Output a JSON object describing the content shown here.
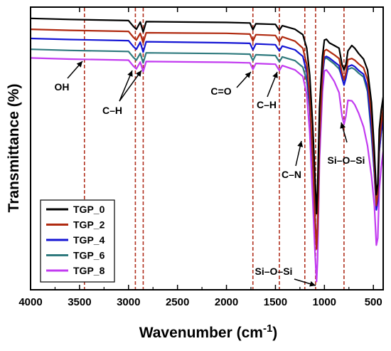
{
  "chart_data": {
    "type": "line",
    "xlabel": "Wavenumber (cm",
    "xlabel_sup": "-1",
    "xlabel_close": ")",
    "ylabel": "Transmittance (%)",
    "xlim": [
      4000,
      400
    ],
    "x_reversed": true,
    "xticks": [
      4000,
      3500,
      3000,
      2500,
      2000,
      1500,
      1000,
      500
    ],
    "y_units": "arbitrary (no y tick labels)",
    "ylim": [
      0,
      100
    ],
    "grid": false,
    "legend_position": "bottom-left",
    "series": [
      {
        "name": "TGP_0",
        "color": "#000000",
        "points": [
          [
            4000,
            99
          ],
          [
            3600,
            98.6
          ],
          [
            3000,
            98.2
          ],
          [
            2950,
            96
          ],
          [
            2920,
            95
          ],
          [
            2880,
            97.6
          ],
          [
            2850,
            94
          ],
          [
            2820,
            97.8
          ],
          [
            2000,
            97.5
          ],
          [
            1760,
            97.3
          ],
          [
            1730,
            94.8
          ],
          [
            1700,
            97
          ],
          [
            1500,
            96.8
          ],
          [
            1460,
            94.6
          ],
          [
            1430,
            96.3
          ],
          [
            1300,
            95
          ],
          [
            1220,
            93
          ],
          [
            1180,
            88
          ],
          [
            1150,
            78
          ],
          [
            1120,
            60
          ],
          [
            1095,
            40
          ],
          [
            1080,
            27
          ],
          [
            1070,
            36
          ],
          [
            1050,
            66
          ],
          [
            1020,
            85
          ],
          [
            1000,
            91
          ],
          [
            980,
            91.3
          ],
          [
            950,
            90
          ],
          [
            900,
            89
          ],
          [
            850,
            88
          ],
          [
            820,
            82
          ],
          [
            800,
            80
          ],
          [
            780,
            82
          ],
          [
            760,
            87
          ],
          [
            720,
            89
          ],
          [
            690,
            88
          ],
          [
            650,
            86
          ],
          [
            600,
            84
          ],
          [
            560,
            80
          ],
          [
            520,
            68
          ],
          [
            490,
            50
          ],
          [
            470,
            34
          ],
          [
            455,
            38
          ],
          [
            440,
            58
          ],
          [
            420,
            65
          ],
          [
            400,
            70
          ]
        ]
      },
      {
        "name": "TGP_2",
        "color": "#b02a10",
        "points": [
          [
            4000,
            95
          ],
          [
            3600,
            94.6
          ],
          [
            3000,
            94.2
          ],
          [
            2950,
            92
          ],
          [
            2920,
            91
          ],
          [
            2880,
            93.5
          ],
          [
            2850,
            90
          ],
          [
            2820,
            93.7
          ],
          [
            2000,
            93.5
          ],
          [
            1760,
            93.2
          ],
          [
            1730,
            90.6
          ],
          [
            1700,
            93
          ],
          [
            1500,
            92.7
          ],
          [
            1460,
            90.4
          ],
          [
            1430,
            92.2
          ],
          [
            1300,
            90.6
          ],
          [
            1220,
            88
          ],
          [
            1180,
            82
          ],
          [
            1150,
            70
          ],
          [
            1120,
            48
          ],
          [
            1095,
            25
          ],
          [
            1080,
            14
          ],
          [
            1070,
            22
          ],
          [
            1050,
            55
          ],
          [
            1020,
            80
          ],
          [
            1000,
            87
          ],
          [
            980,
            87.5
          ],
          [
            950,
            86.8
          ],
          [
            900,
            85.6
          ],
          [
            850,
            84.2
          ],
          [
            820,
            79
          ],
          [
            800,
            76.4
          ],
          [
            780,
            79
          ],
          [
            760,
            83.8
          ],
          [
            720,
            84.2
          ],
          [
            690,
            83.6
          ],
          [
            650,
            82.2
          ],
          [
            600,
            80.8
          ],
          [
            560,
            76.4
          ],
          [
            520,
            63
          ],
          [
            490,
            45
          ],
          [
            470,
            30
          ],
          [
            455,
            34
          ],
          [
            440,
            53
          ],
          [
            420,
            60
          ],
          [
            400,
            66
          ]
        ]
      },
      {
        "name": "TGP_4",
        "color": "#1515d4",
        "points": [
          [
            4000,
            91.6
          ],
          [
            3600,
            91.2
          ],
          [
            3000,
            90.8
          ],
          [
            2950,
            88.6
          ],
          [
            2920,
            87.6
          ],
          [
            2880,
            90.2
          ],
          [
            2850,
            86.6
          ],
          [
            2820,
            90.4
          ],
          [
            2000,
            90
          ],
          [
            1760,
            89.8
          ],
          [
            1730,
            87.4
          ],
          [
            1700,
            89.6
          ],
          [
            1500,
            89.3
          ],
          [
            1460,
            87
          ],
          [
            1430,
            88.8
          ],
          [
            1300,
            87.4
          ],
          [
            1220,
            85
          ],
          [
            1180,
            79
          ],
          [
            1150,
            67
          ],
          [
            1120,
            46
          ],
          [
            1095,
            25
          ],
          [
            1080,
            15
          ],
          [
            1070,
            23
          ],
          [
            1050,
            54
          ],
          [
            1020,
            78
          ],
          [
            1000,
            84.6
          ],
          [
            980,
            85
          ],
          [
            950,
            84.4
          ],
          [
            900,
            83
          ],
          [
            850,
            81.6
          ],
          [
            820,
            77
          ],
          [
            800,
            74.4
          ],
          [
            780,
            77
          ],
          [
            760,
            81.2
          ],
          [
            720,
            81.8
          ],
          [
            690,
            81.2
          ],
          [
            650,
            79.8
          ],
          [
            600,
            78.4
          ],
          [
            560,
            73.4
          ],
          [
            520,
            58
          ],
          [
            490,
            42
          ],
          [
            470,
            28.4
          ],
          [
            455,
            31.6
          ],
          [
            440,
            50
          ],
          [
            420,
            57
          ],
          [
            400,
            63
          ]
        ]
      },
      {
        "name": "TGP_6",
        "color": "#2f7a7e",
        "points": [
          [
            4000,
            87.6
          ],
          [
            3600,
            87.2
          ],
          [
            3000,
            86.8
          ],
          [
            2950,
            84.6
          ],
          [
            2920,
            83.6
          ],
          [
            2880,
            86.1
          ],
          [
            2850,
            82.6
          ],
          [
            2820,
            86.3
          ],
          [
            2000,
            86
          ],
          [
            1760,
            85.8
          ],
          [
            1730,
            83.4
          ],
          [
            1700,
            85.6
          ],
          [
            1500,
            85.3
          ],
          [
            1460,
            83
          ],
          [
            1430,
            84.8
          ],
          [
            1300,
            83.4
          ],
          [
            1220,
            81
          ],
          [
            1180,
            76
          ],
          [
            1150,
            66
          ],
          [
            1120,
            50
          ],
          [
            1095,
            34
          ],
          [
            1080,
            27
          ],
          [
            1070,
            34
          ],
          [
            1050,
            58
          ],
          [
            1020,
            78
          ],
          [
            1000,
            84
          ],
          [
            980,
            84.4
          ],
          [
            950,
            83.6
          ],
          [
            900,
            82.2
          ],
          [
            850,
            80.4
          ],
          [
            820,
            77.4
          ],
          [
            800,
            76
          ],
          [
            780,
            77.4
          ],
          [
            760,
            80.2
          ],
          [
            720,
            80.8
          ],
          [
            690,
            80.2
          ],
          [
            650,
            78.8
          ],
          [
            600,
            77.4
          ],
          [
            560,
            72
          ],
          [
            520,
            56
          ],
          [
            490,
            42
          ],
          [
            470,
            30
          ],
          [
            455,
            33
          ],
          [
            440,
            50
          ],
          [
            420,
            57
          ],
          [
            400,
            62
          ]
        ]
      },
      {
        "name": "TGP_8",
        "color": "#c23bf0",
        "points": [
          [
            4000,
            84.4
          ],
          [
            3600,
            84
          ],
          [
            3000,
            83.6
          ],
          [
            2950,
            81.4
          ],
          [
            2920,
            80.4
          ],
          [
            2880,
            82.9
          ],
          [
            2850,
            79.4
          ],
          [
            2820,
            83.1
          ],
          [
            2000,
            82.8
          ],
          [
            1760,
            82.6
          ],
          [
            1730,
            80.2
          ],
          [
            1700,
            82.4
          ],
          [
            1500,
            82.1
          ],
          [
            1460,
            79.8
          ],
          [
            1430,
            81.6
          ],
          [
            1300,
            80
          ],
          [
            1220,
            77.6
          ],
          [
            1180,
            71
          ],
          [
            1150,
            57
          ],
          [
            1120,
            33
          ],
          [
            1095,
            12
          ],
          [
            1080,
            2
          ],
          [
            1070,
            10
          ],
          [
            1050,
            47
          ],
          [
            1020,
            72
          ],
          [
            1000,
            79.6
          ],
          [
            980,
            80
          ],
          [
            950,
            78.6
          ],
          [
            900,
            75.8
          ],
          [
            850,
            71.6
          ],
          [
            820,
            63
          ],
          [
            800,
            60
          ],
          [
            780,
            63
          ],
          [
            760,
            68.8
          ],
          [
            720,
            68.6
          ],
          [
            690,
            67.2
          ],
          [
            650,
            64
          ],
          [
            600,
            59
          ],
          [
            560,
            52
          ],
          [
            520,
            41
          ],
          [
            490,
            30
          ],
          [
            470,
            15.4
          ],
          [
            455,
            18
          ],
          [
            440,
            36
          ],
          [
            420,
            44
          ],
          [
            400,
            50
          ]
        ]
      }
    ],
    "vlines": [
      3450,
      2930,
      2850,
      1730,
      1460,
      1200,
      1090,
      800
    ],
    "annotations": [
      {
        "text": "OH",
        "x_value": 3450
      },
      {
        "text": "C–H",
        "x_value": 2890
      },
      {
        "text": "C=O",
        "x_value": 1730
      },
      {
        "text": "C–H",
        "x_value": 1460
      },
      {
        "text": "C–N",
        "x_value": 1200
      },
      {
        "text": "Si–O–Si",
        "x_value": 800
      },
      {
        "text": "Si–O–Si",
        "x_value": 1080
      }
    ]
  }
}
